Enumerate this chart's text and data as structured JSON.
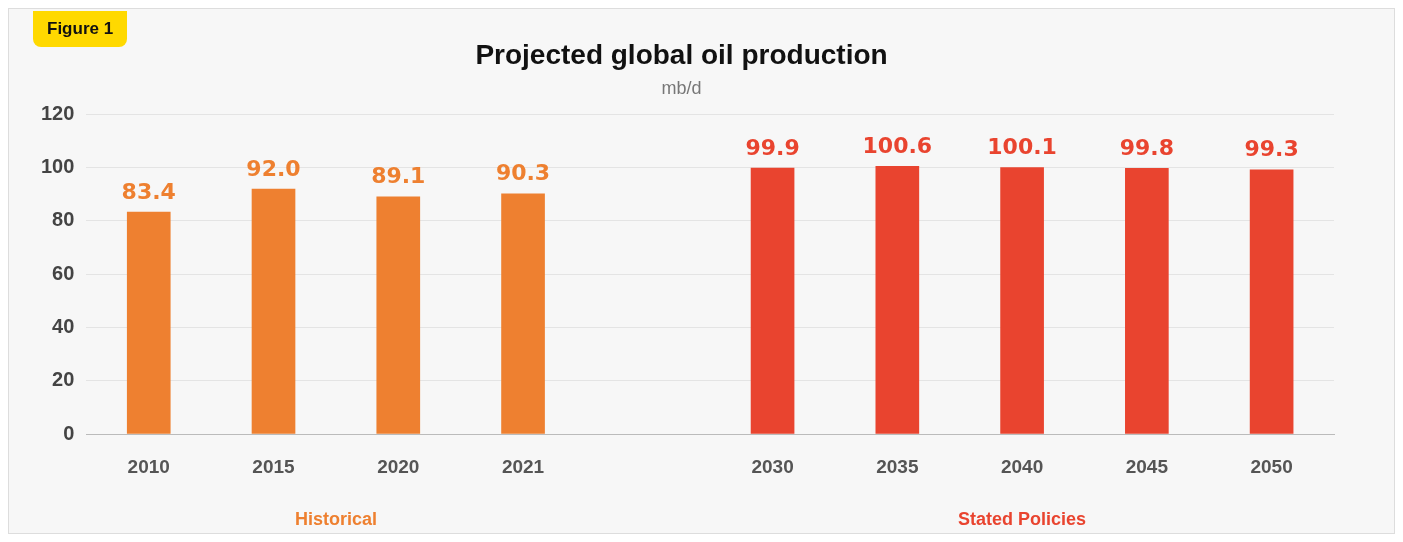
{
  "chart_data": {
    "type": "bar",
    "title": "Projected global oil production",
    "subtitle": "mb/d",
    "annotations": [
      "Figure 1"
    ],
    "categories": [
      "2010",
      "2015",
      "2020",
      "2021",
      null,
      "2030",
      "2035",
      "2040",
      "2045",
      "2050"
    ],
    "series": [
      {
        "name": "Historical",
        "color": "#ee8030",
        "values": [
          83.4,
          92.0,
          89.1,
          90.3,
          null,
          null,
          null,
          null,
          null,
          null
        ],
        "value_labels": [
          "83.4",
          "92.0",
          "89.1",
          "90.3",
          null,
          null,
          null,
          null,
          null,
          null
        ]
      },
      {
        "name": "Stated Policies",
        "color": "#e9442f",
        "values": [
          null,
          null,
          null,
          null,
          null,
          99.9,
          100.6,
          100.1,
          99.8,
          99.3
        ],
        "value_labels": [
          null,
          null,
          null,
          null,
          null,
          "99.9",
          "100.6",
          "100.1",
          "99.8",
          "99.3"
        ]
      }
    ],
    "ylim": [
      0,
      120
    ],
    "yticks": [
      0,
      20,
      40,
      60,
      80,
      100,
      120
    ],
    "grid": "y",
    "legend": false
  }
}
